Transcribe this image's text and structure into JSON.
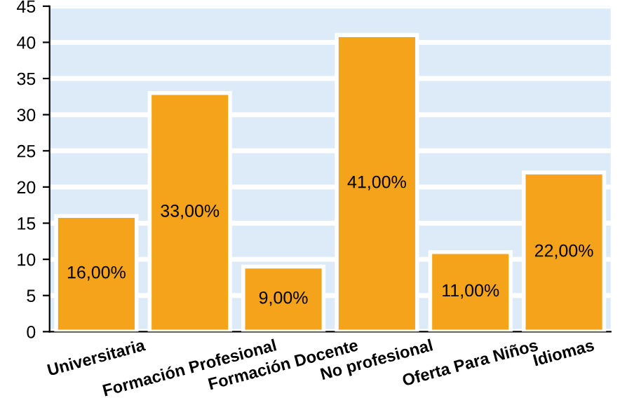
{
  "chart_data": {
    "type": "bar",
    "categories": [
      "Universitaria",
      "Formación Profesional",
      "Formación Docente",
      "No profesional",
      "Oferta Para Niños",
      "Idiomas"
    ],
    "values": [
      16,
      33,
      9,
      41,
      11,
      22
    ],
    "value_labels": [
      "16,00%",
      "33,00%",
      "9,00%",
      "41,00%",
      "11,00%",
      "22,00%"
    ],
    "color": "#f5a31a",
    "ylim": [
      0,
      45
    ],
    "yticks": [
      0,
      5,
      10,
      15,
      20,
      25,
      30,
      35,
      40,
      45
    ],
    "grid": "y"
  }
}
